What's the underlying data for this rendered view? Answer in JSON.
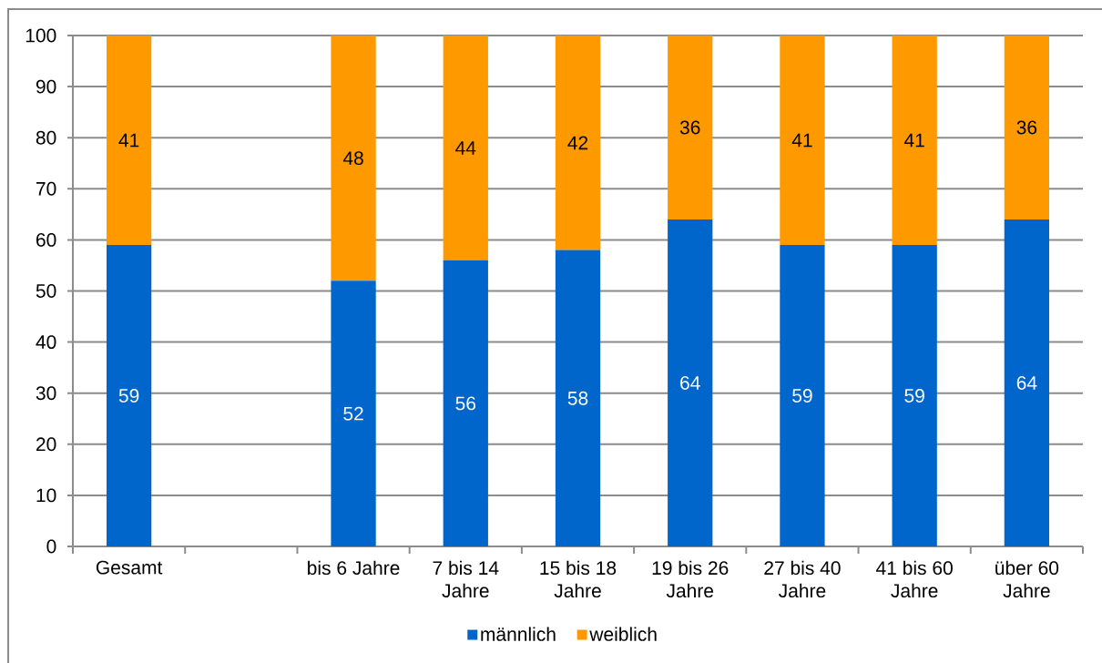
{
  "chart_data": {
    "type": "bar",
    "stacked": true,
    "categories": [
      "Gesamt",
      null,
      "bis 6 Jahre",
      "7 bis 14 Jahre",
      "15 bis 18 Jahre",
      "19 bis 26 Jahre",
      "27 bis 40 Jahre",
      "41 bis 60 Jahre",
      "über 60 Jahre"
    ],
    "series": [
      {
        "name": "männlich",
        "color": "#0066cc",
        "values": [
          59,
          null,
          52,
          56,
          58,
          64,
          59,
          59,
          64
        ]
      },
      {
        "name": "weiblich",
        "color": "#ff9900",
        "values": [
          41,
          null,
          48,
          44,
          42,
          36,
          41,
          41,
          36
        ]
      }
    ],
    "ylim": [
      0,
      100
    ],
    "yticks": [
      0,
      10,
      20,
      30,
      40,
      50,
      60,
      70,
      80,
      90,
      100
    ],
    "grid": "y",
    "legend": "bottom",
    "data_labels": true
  }
}
